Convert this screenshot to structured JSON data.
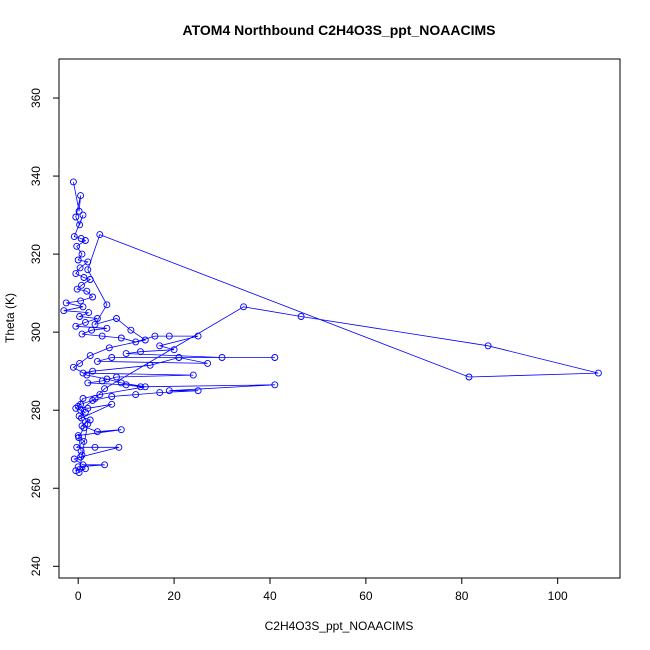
{
  "chart_data": {
    "type": "scatter",
    "title": "ATOM4 Northbound C2H4O3S_ppt_NOAACIMS",
    "xlabel": "C2H4O3S_ppt_NOAACIMS",
    "ylabel": "Theta (K)",
    "xlim": [
      -4,
      113
    ],
    "ylim": [
      237,
      370
    ],
    "xticks": [
      0,
      20,
      40,
      60,
      80,
      100
    ],
    "yticks": [
      240,
      260,
      280,
      300,
      320,
      340,
      360
    ],
    "grid": false,
    "legend": "none",
    "series": [
      {
        "color": "#0000ff",
        "marker": "open-circle",
        "connected": true,
        "points": [
          [
            -1.0,
            338.5
          ],
          [
            0.2,
            331.0
          ],
          [
            0.5,
            335.0
          ],
          [
            -0.5,
            329.5
          ],
          [
            0.3,
            327.5
          ],
          [
            1.0,
            330.0
          ],
          [
            -0.8,
            324.5
          ],
          [
            0.6,
            324.0
          ],
          [
            1.5,
            323.5
          ],
          [
            -0.3,
            322.0
          ],
          [
            0.8,
            320.0
          ],
          [
            0.0,
            318.5
          ],
          [
            2.0,
            318.0
          ],
          [
            0.4,
            316.5
          ],
          [
            -0.5,
            315.0
          ],
          [
            1.2,
            314.0
          ],
          [
            2.5,
            313.5
          ],
          [
            0.7,
            312.0
          ],
          [
            -0.2,
            311.0
          ],
          [
            1.8,
            310.5
          ],
          [
            3.0,
            309.0
          ],
          [
            0.5,
            308.0
          ],
          [
            -2.5,
            307.5
          ],
          [
            1.0,
            306.5
          ],
          [
            -3.0,
            305.5
          ],
          [
            2.2,
            305.0
          ],
          [
            0.3,
            304.0
          ],
          [
            4.0,
            303.5
          ],
          [
            1.5,
            302.5
          ],
          [
            -0.5,
            301.5
          ],
          [
            6.0,
            301.0
          ],
          [
            2.8,
            300.5
          ],
          [
            0.8,
            299.5
          ],
          [
            5.0,
            299.0
          ],
          [
            9.0,
            298.5
          ],
          [
            12.0,
            297.5
          ],
          [
            16.0,
            299.0
          ],
          [
            19.0,
            299.0
          ],
          [
            25.0,
            299.0
          ],
          [
            17.0,
            296.5
          ],
          [
            20.0,
            295.5
          ],
          [
            13.0,
            295.0
          ],
          [
            10.0,
            294.5
          ],
          [
            30.0,
            293.5
          ],
          [
            41.0,
            293.5
          ],
          [
            7.0,
            293.5
          ],
          [
            4.0,
            292.5
          ],
          [
            27.0,
            292.0
          ],
          [
            21.0,
            293.5
          ],
          [
            15.0,
            291.5
          ],
          [
            3.0,
            290.0
          ],
          [
            1.0,
            289.5
          ],
          [
            24.0,
            289.0
          ],
          [
            8.0,
            288.5
          ],
          [
            5.0,
            287.5
          ],
          [
            2.0,
            287.0
          ],
          [
            10.0,
            286.5
          ],
          [
            13.0,
            286.0
          ],
          [
            41.0,
            286.5
          ],
          [
            19.0,
            285.0
          ],
          [
            25.0,
            285.0
          ],
          [
            17.0,
            284.5
          ],
          [
            12.0,
            284.0
          ],
          [
            7.0,
            283.5
          ],
          [
            3.0,
            282.5
          ],
          [
            0.5,
            281.5
          ],
          [
            -0.5,
            280.5
          ],
          [
            1.5,
            279.5
          ],
          [
            0.2,
            278.5
          ],
          [
            2.5,
            277.5
          ],
          [
            0.8,
            276.0
          ],
          [
            4.0,
            274.5
          ],
          [
            9.0,
            275.0
          ],
          [
            0.0,
            273.5
          ],
          [
            1.2,
            272.0
          ],
          [
            -0.3,
            270.5
          ],
          [
            3.5,
            270.5
          ],
          [
            8.5,
            270.5
          ],
          [
            0.5,
            268.0
          ],
          [
            -0.8,
            267.5
          ],
          [
            1.0,
            266.0
          ],
          [
            5.5,
            266.0
          ],
          [
            0.0,
            265.5
          ],
          [
            -0.5,
            264.5
          ],
          [
            1.5,
            265.0
          ],
          [
            0.2,
            264.0
          ],
          [
            0.8,
            268.5
          ],
          [
            2.0,
            276.5
          ],
          [
            0.5,
            280.0
          ],
          [
            3.5,
            283.0
          ],
          [
            5.5,
            285.5
          ],
          [
            34.5,
            306.5
          ],
          [
            46.5,
            304.0
          ],
          [
            85.5,
            296.5
          ],
          [
            108.5,
            289.5
          ],
          [
            81.5,
            288.5
          ],
          [
            4.5,
            325.0
          ],
          [
            2.0,
            316.0
          ],
          [
            6.0,
            307.0
          ],
          [
            3.5,
            302.0
          ],
          [
            8.0,
            303.5
          ],
          [
            11.0,
            300.5
          ],
          [
            14.0,
            298.0
          ],
          [
            6.5,
            296.0
          ],
          [
            2.5,
            294.0
          ],
          [
            0.3,
            292.0
          ],
          [
            -1.0,
            291.0
          ],
          [
            1.8,
            289.0
          ],
          [
            6.0,
            288.0
          ],
          [
            9.0,
            287.0
          ],
          [
            14.0,
            286.0
          ],
          [
            4.5,
            284.0
          ],
          [
            1.0,
            283.0
          ],
          [
            0.0,
            281.0
          ],
          [
            2.0,
            280.5
          ],
          [
            7.0,
            281.5
          ],
          [
            0.7,
            278.0
          ],
          [
            1.2,
            275.5
          ],
          [
            0.1,
            273.0
          ],
          [
            0.6,
            269.5
          ]
        ]
      }
    ]
  }
}
